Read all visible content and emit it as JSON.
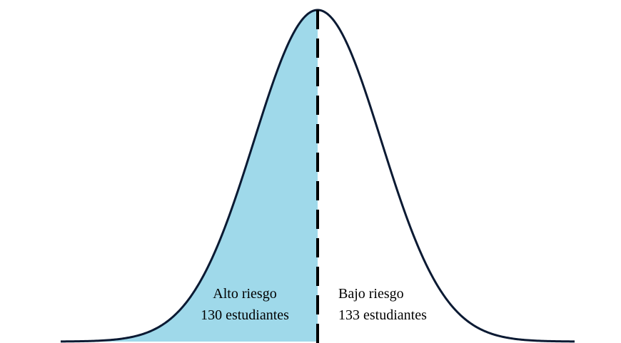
{
  "regions": [
    {
      "label": "Alto riesgo",
      "count": "130 estudiantes"
    },
    {
      "label": "Bajo riesgo",
      "count": "133 estudiantes"
    }
  ]
}
